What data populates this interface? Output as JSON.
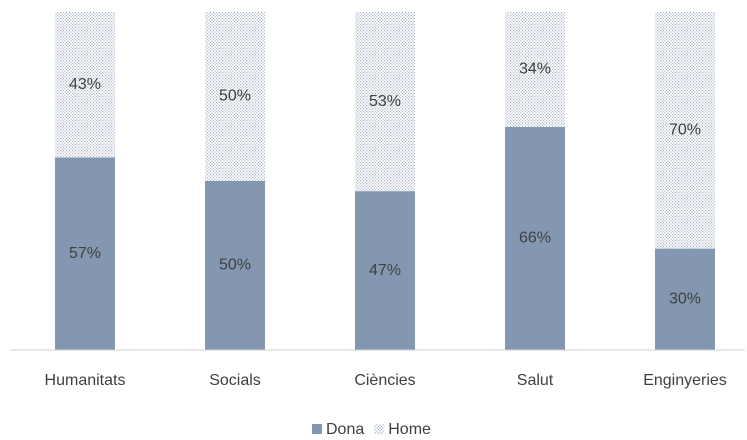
{
  "chart_data": {
    "type": "stacked_bar",
    "categories": [
      "Humanitats",
      "Socials",
      "Ciències",
      "Salut",
      "Enginyeries"
    ],
    "series": [
      {
        "name": "Dona",
        "color": "#8497b0",
        "values": [
          57,
          50,
          47,
          66,
          30
        ],
        "value_labels": [
          "57%",
          "50%",
          "47%",
          "66%",
          "30%"
        ]
      },
      {
        "name": "Home",
        "color": "#adb9ca",
        "values": [
          43,
          50,
          53,
          34,
          70
        ],
        "value_labels": [
          "43%",
          "50%",
          "53%",
          "34%",
          "70%"
        ]
      }
    ],
    "ylim": [
      0,
      100
    ],
    "legend": "bottom"
  }
}
